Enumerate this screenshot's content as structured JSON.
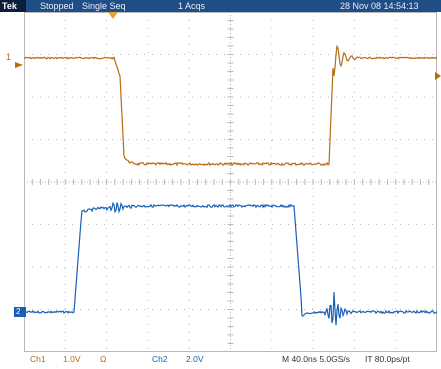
{
  "status": {
    "brand": "Tek",
    "state": "Stopped",
    "mode": "Single Seq",
    "acquisitions": "1 Acqs",
    "datetime": "28 Nov 08 14:54:13"
  },
  "channels": {
    "ch1": {
      "label": "Ch1",
      "scale": "1.0V",
      "coupling": "Ω",
      "marker": "1",
      "color": "#b86a14"
    },
    "ch2": {
      "label": "Ch2",
      "scale": "2.0V",
      "marker": "2",
      "color": "#1a5fb4"
    }
  },
  "timebase": {
    "horizontal": "M 40.0ns 5.0GS/s",
    "interp": "IT 80.0ps/pt"
  },
  "colors": {
    "grid": "#b8b8b8",
    "status_bar": "#1f4e86",
    "trigger": "#e8a030"
  },
  "icons": {
    "trigger_position": "trigger-position-icon",
    "ch1_ground": "ch1-ground-marker-icon",
    "ch2_ground": "ch2-ground-marker-icon"
  }
}
